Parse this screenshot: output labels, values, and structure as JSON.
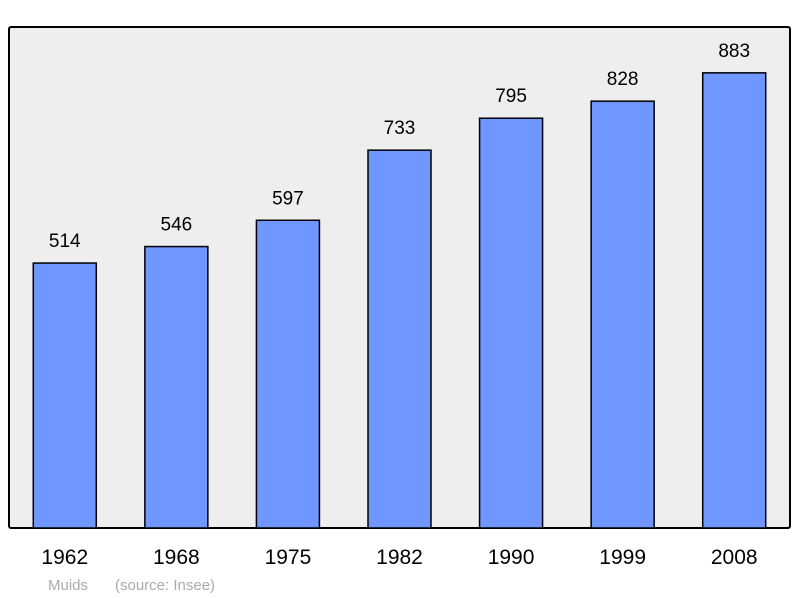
{
  "chart_data": {
    "type": "bar",
    "categories": [
      "1962",
      "1968",
      "1975",
      "1982",
      "1990",
      "1999",
      "2008"
    ],
    "values": [
      514,
      546,
      597,
      733,
      795,
      828,
      883
    ],
    "ylim": [
      0,
      970
    ],
    "grid": false,
    "bar_color": "#7096ff",
    "plot_background": "#eeeeee",
    "caption_name": "Muids",
    "caption_source": "(source: Insee)"
  }
}
